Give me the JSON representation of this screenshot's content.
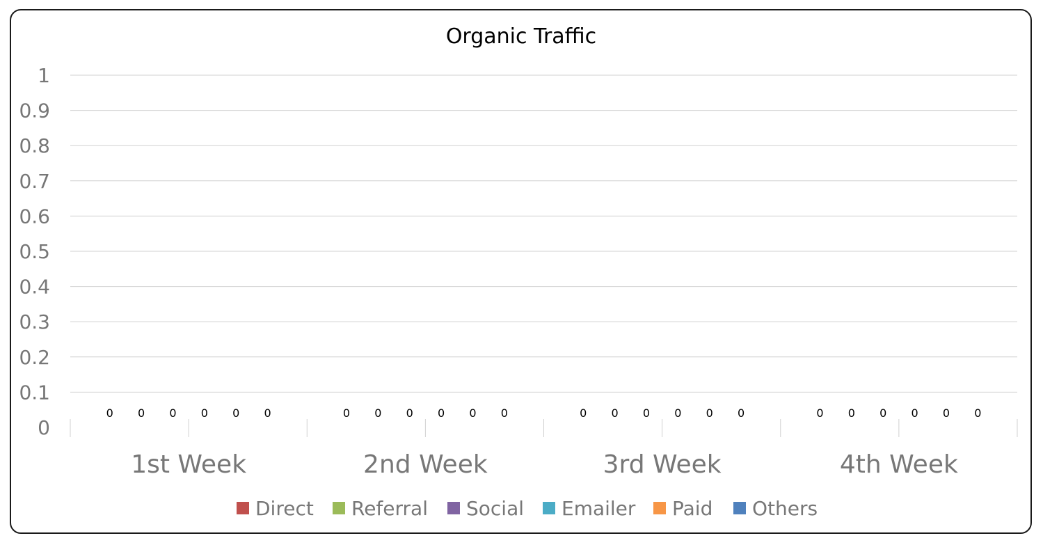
{
  "chart_data": {
    "type": "bar",
    "title": "Organic Traffic",
    "xlabel": "",
    "ylabel": "",
    "categories": [
      "1st Week",
      "2nd Week",
      "3rd Week",
      "4th Week"
    ],
    "series": [
      {
        "name": "Direct",
        "color": "#C0504D",
        "values": [
          0,
          0,
          0,
          0
        ]
      },
      {
        "name": "Referral",
        "color": "#9BBB59",
        "values": [
          0,
          0,
          0,
          0
        ]
      },
      {
        "name": "Social",
        "color": "#8064A2",
        "values": [
          0,
          0,
          0,
          0
        ]
      },
      {
        "name": "Emailer",
        "color": "#4BACC6",
        "values": [
          0,
          0,
          0,
          0
        ]
      },
      {
        "name": "Paid",
        "color": "#F79646",
        "values": [
          0,
          0,
          0,
          0
        ]
      },
      {
        "name": "Others",
        "color": "#4F81BD",
        "values": [
          0,
          0,
          0,
          0
        ]
      }
    ],
    "ylim": [
      0,
      1
    ],
    "yticks": [
      "0",
      "0.1",
      "0.2",
      "0.3",
      "0.4",
      "0.5",
      "0.6",
      "0.7",
      "0.8",
      "0.9",
      "1"
    ],
    "grid": true,
    "data_labels": true,
    "legend": "bottom"
  }
}
